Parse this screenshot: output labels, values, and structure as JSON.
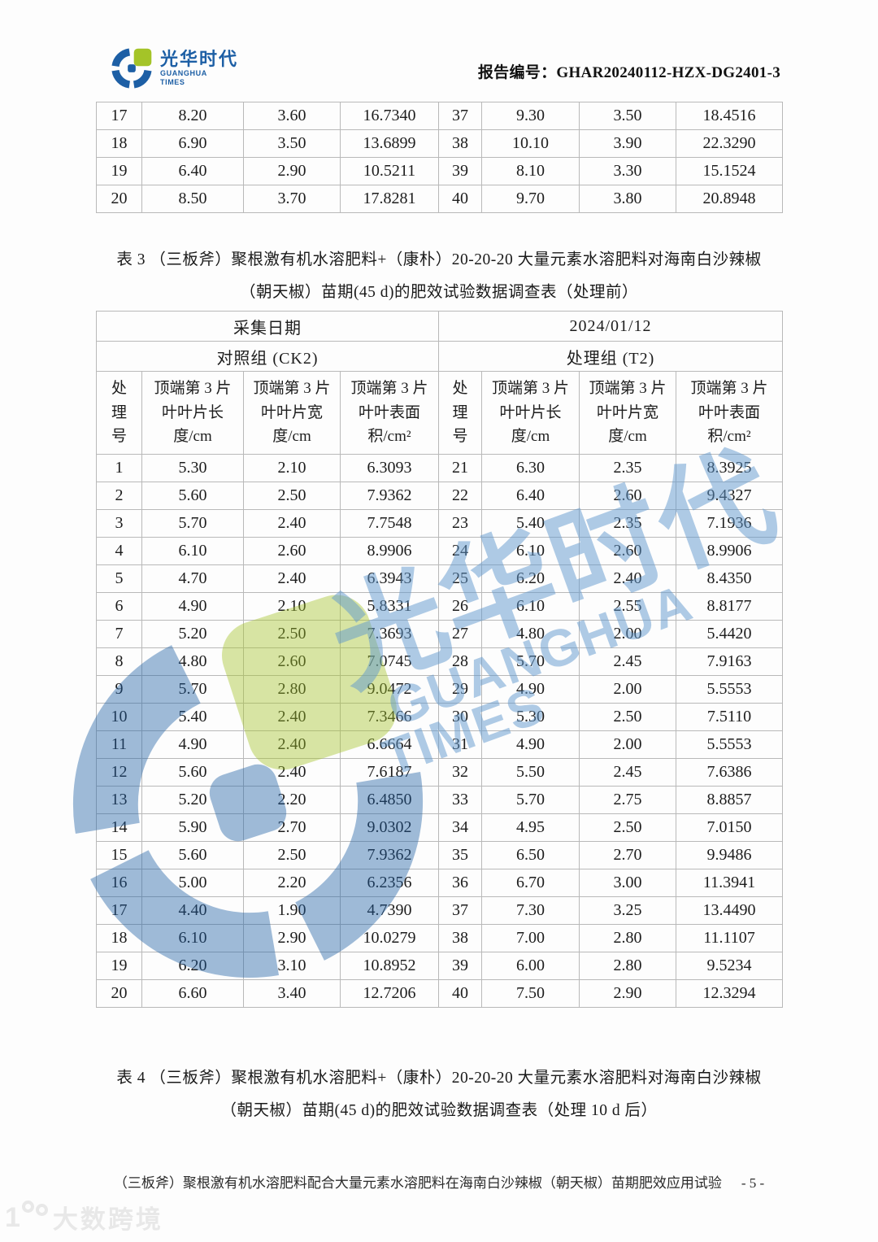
{
  "header": {
    "logo_cn": "光华时代",
    "logo_en1": "GUANGHUA",
    "logo_en2": "TIMES",
    "report_label": "报告编号：",
    "report_no": "GHAR20240112-HZX-DG2401-3"
  },
  "top_table": {
    "rows": [
      [
        "17",
        "8.20",
        "3.60",
        "16.7340",
        "37",
        "9.30",
        "3.50",
        "18.4516"
      ],
      [
        "18",
        "6.90",
        "3.50",
        "13.6899",
        "38",
        "10.10",
        "3.90",
        "22.3290"
      ],
      [
        "19",
        "6.40",
        "2.90",
        "10.5211",
        "39",
        "8.10",
        "3.30",
        "15.1524"
      ],
      [
        "20",
        "8.50",
        "3.70",
        "17.8281",
        "40",
        "9.70",
        "3.80",
        "20.8948"
      ]
    ]
  },
  "table3": {
    "title_line1": "表 3 （三板斧）聚根激有机水溶肥料+（康朴）20-20-20 大量元素水溶肥料对海南白沙辣椒",
    "title_line2": "（朝天椒）苗期(45 d)的肥效试验数据调查表（处理前）",
    "collect_date_label": "采集日期",
    "collect_date_value": "2024/01/12",
    "group_left": "对照组 (CK2)",
    "group_right": "处理组 (T2)",
    "col_headers": [
      "处理号",
      "顶端第 3 片叶叶片长度/cm",
      "顶端第 3 片叶叶片宽度/cm",
      "顶端第 3 片叶叶表面积/cm²",
      "处理号",
      "顶端第 3 片叶叶片长度/cm",
      "顶端第 3 片叶叶片宽度/cm",
      "顶端第 3 片叶叶表面积/cm²"
    ],
    "rows": [
      [
        "1",
        "5.30",
        "2.10",
        "6.3093",
        "21",
        "6.30",
        "2.35",
        "8.3925"
      ],
      [
        "2",
        "5.60",
        "2.50",
        "7.9362",
        "22",
        "6.40",
        "2.60",
        "9.4327"
      ],
      [
        "3",
        "5.70",
        "2.40",
        "7.7548",
        "23",
        "5.40",
        "2.35",
        "7.1936"
      ],
      [
        "4",
        "6.10",
        "2.60",
        "8.9906",
        "24",
        "6.10",
        "2.60",
        "8.9906"
      ],
      [
        "5",
        "4.70",
        "2.40",
        "6.3943",
        "25",
        "6.20",
        "2.40",
        "8.4350"
      ],
      [
        "6",
        "4.90",
        "2.10",
        "5.8331",
        "26",
        "6.10",
        "2.55",
        "8.8177"
      ],
      [
        "7",
        "5.20",
        "2.50",
        "7.3693",
        "27",
        "4.80",
        "2.00",
        "5.4420"
      ],
      [
        "8",
        "4.80",
        "2.60",
        "7.0745",
        "28",
        "5.70",
        "2.45",
        "7.9163"
      ],
      [
        "9",
        "5.70",
        "2.80",
        "9.0472",
        "29",
        "4.90",
        "2.00",
        "5.5553"
      ],
      [
        "10",
        "5.40",
        "2.40",
        "7.3466",
        "30",
        "5.30",
        "2.50",
        "7.5110"
      ],
      [
        "11",
        "4.90",
        "2.40",
        "6.6664",
        "31",
        "4.90",
        "2.00",
        "5.5553"
      ],
      [
        "12",
        "5.60",
        "2.40",
        "7.6187",
        "32",
        "5.50",
        "2.45",
        "7.6386"
      ],
      [
        "13",
        "5.20",
        "2.20",
        "6.4850",
        "33",
        "5.70",
        "2.75",
        "8.8857"
      ],
      [
        "14",
        "5.90",
        "2.70",
        "9.0302",
        "34",
        "4.95",
        "2.50",
        "7.0150"
      ],
      [
        "15",
        "5.60",
        "2.50",
        "7.9362",
        "35",
        "6.50",
        "2.70",
        "9.9486"
      ],
      [
        "16",
        "5.00",
        "2.20",
        "6.2356",
        "36",
        "6.70",
        "3.00",
        "11.3941"
      ],
      [
        "17",
        "4.40",
        "1.90",
        "4.7390",
        "37",
        "7.30",
        "3.25",
        "13.4490"
      ],
      [
        "18",
        "6.10",
        "2.90",
        "10.0279",
        "38",
        "7.00",
        "2.80",
        "11.1107"
      ],
      [
        "19",
        "6.20",
        "3.10",
        "10.8952",
        "39",
        "6.00",
        "2.80",
        "9.5234"
      ],
      [
        "20",
        "6.60",
        "3.40",
        "12.7206",
        "40",
        "7.50",
        "2.90",
        "12.3294"
      ]
    ]
  },
  "table4": {
    "title_line1": "表 4 （三板斧）聚根激有机水溶肥料+（康朴）20-20-20 大量元素水溶肥料对海南白沙辣椒",
    "title_line2": "（朝天椒）苗期(45 d)的肥效试验数据调查表（处理 10 d 后）"
  },
  "footer": {
    "text": "（三板斧）聚根激有机水溶肥料配合大量元素水溶肥料在海南白沙辣椒（朝天椒）苗期肥效应用试验",
    "page": "- 5 -"
  },
  "watermark": {
    "cn": "光华时代",
    "en1": "GUANGHUA",
    "en2": "TIMES"
  },
  "corner_watermark": {
    "number": "1",
    "text": "大数跨境"
  },
  "colors": {
    "brand_blue": "#1d5fa5",
    "brand_green": "#a4c428",
    "table_border": "#b9b9b9",
    "watermark_blue": "rgba(96,152,206,0.5)"
  }
}
